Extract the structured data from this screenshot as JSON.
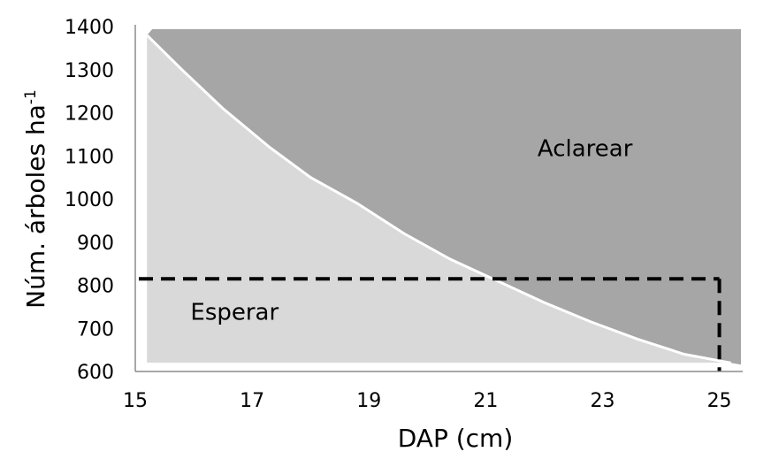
{
  "chart_data": {
    "type": "area",
    "xlabel": "DAP (cm)",
    "ylabel_main": "Núm. árboles ha",
    "ylabel_sup": "-1",
    "xlim": [
      15,
      25.4
    ],
    "ylim": [
      600,
      1400
    ],
    "xticks": [
      "15",
      "17",
      "19",
      "21",
      "23",
      "25"
    ],
    "yticks": [
      "600",
      "700",
      "800",
      "900",
      "1000",
      "1100",
      "1200",
      "1300",
      "1400"
    ],
    "threshold_curve": {
      "x": [
        15.2,
        15.8,
        16.5,
        17.3,
        18.0,
        18.8,
        19.6,
        20.4,
        21.2,
        22.0,
        22.8,
        23.6,
        24.4,
        25.2
      ],
      "y": [
        1380,
        1300,
        1210,
        1120,
        1050,
        990,
        920,
        860,
        810,
        760,
        715,
        675,
        640,
        620
      ]
    },
    "regions": [
      {
        "label": "Aclarear",
        "label_x": 22.7,
        "label_y": 1100,
        "color": "#a6a6a6"
      },
      {
        "label": "Esperar",
        "label_x": 16.7,
        "label_y": 720,
        "color": "#d9d9d9"
      }
    ],
    "reference": {
      "x": 25,
      "y": 815
    },
    "grid": false
  }
}
